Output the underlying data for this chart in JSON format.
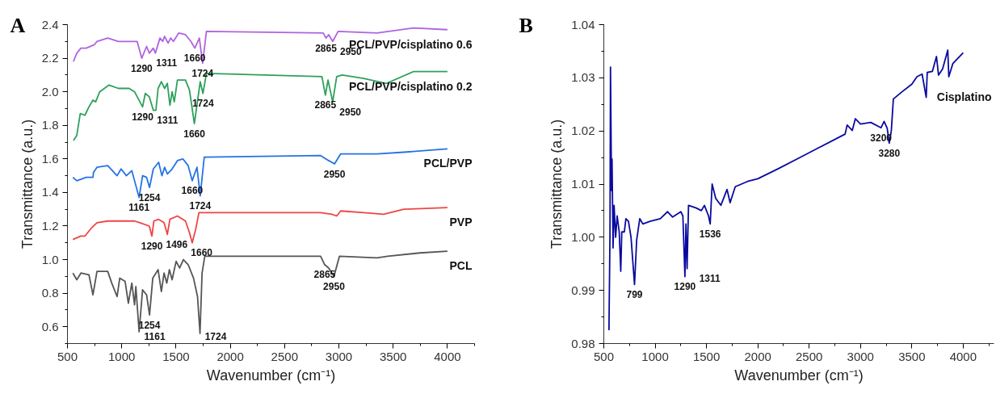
{
  "chart_data": [
    {
      "type": "line",
      "title": "A",
      "xlabel": "Wavenumber (cm⁻¹)",
      "ylabel": "Transmittance (a.u.)",
      "xlim": [
        500,
        4250
      ],
      "ylim": [
        0.5,
        2.4
      ],
      "xticks": [
        500,
        1000,
        1500,
        2000,
        2500,
        3000,
        3500,
        4000
      ],
      "yticks": [
        {
          "value": 0.6,
          "label": "0.6"
        },
        {
          "value": 0.8,
          "label": "0.8"
        },
        {
          "value": 1.0,
          "label": "1.0"
        },
        {
          "value": 1.2,
          "label": "1.2"
        },
        {
          "value": 1.4,
          "label": "1.4"
        },
        {
          "value": 1.6,
          "label": "1.6"
        },
        {
          "value": 1.8,
          "label": "1.8"
        },
        {
          "value": 2.0,
          "label": "2.0"
        },
        {
          "value": 2.2,
          "label": "2.2"
        },
        {
          "value": 2.4,
          "label": "2.4"
        }
      ],
      "series": [
        {
          "name": "PCL/PVP/cisplatino 0.6",
          "color": "#b063e0",
          "x": [
            555,
            586,
            624,
            673,
            747,
            772,
            871,
            969,
            1068,
            1142,
            1184,
            1229,
            1254,
            1291,
            1310,
            1352,
            1377,
            1395,
            1427,
            1451,
            1476,
            1525,
            1587,
            1637,
            1673,
            1715,
            1745,
            1780,
            2856,
            2881,
            2906,
            2943,
            2993,
            3351,
            3686,
            4000
          ],
          "values": [
            2.18,
            2.23,
            2.26,
            2.26,
            2.28,
            2.3,
            2.32,
            2.3,
            2.3,
            2.3,
            2.2,
            2.27,
            2.23,
            2.26,
            2.23,
            2.32,
            2.3,
            2.33,
            2.29,
            2.32,
            2.3,
            2.35,
            2.34,
            2.3,
            2.26,
            2.32,
            2.17,
            2.36,
            2.35,
            2.32,
            2.34,
            2.3,
            2.36,
            2.35,
            2.38,
            2.37
          ]
        },
        {
          "name": "PCL/PVP/cisplatino 0.2",
          "color": "#2ea05c",
          "x": [
            555,
            586,
            618,
            661,
            698,
            735,
            760,
            797,
            883,
            969,
            1068,
            1118,
            1192,
            1217,
            1254,
            1291,
            1315,
            1335,
            1365,
            1395,
            1420,
            1444,
            1464,
            1484,
            1513,
            1587,
            1624,
            1669,
            1723,
            1748,
            1780,
            2844,
            2876,
            2900,
            2943,
            2980,
            3030,
            3228,
            3438,
            3686,
            4000
          ],
          "values": [
            1.71,
            1.74,
            1.87,
            1.86,
            1.91,
            1.95,
            1.94,
            2.0,
            2.04,
            2.02,
            2.02,
            2.0,
            1.91,
            1.99,
            1.97,
            1.89,
            1.89,
            2.02,
            2.06,
            2.02,
            2.05,
            1.92,
            2.0,
            1.94,
            2.07,
            2.07,
            2.01,
            1.81,
            2.06,
            1.99,
            2.11,
            2.09,
            1.98,
            2.07,
            1.94,
            2.09,
            2.1,
            2.08,
            2.05,
            2.12,
            2.12
          ]
        },
        {
          "name": "PCL/PVP",
          "color": "#2472e6",
          "x": [
            550,
            586,
            673,
            735,
            740,
            772,
            871,
            957,
            994,
            1043,
            1093,
            1160,
            1192,
            1229,
            1256,
            1291,
            1340,
            1370,
            1395,
            1420,
            1464,
            1513,
            1563,
            1612,
            1649,
            1693,
            1723,
            1760,
            2832,
            2906,
            2960,
            3017,
            3351,
            3599,
            4000
          ],
          "values": [
            1.49,
            1.47,
            1.49,
            1.49,
            1.52,
            1.55,
            1.56,
            1.5,
            1.54,
            1.5,
            1.53,
            1.37,
            1.5,
            1.49,
            1.43,
            1.54,
            1.58,
            1.5,
            1.55,
            1.51,
            1.54,
            1.59,
            1.6,
            1.56,
            1.47,
            1.55,
            1.38,
            1.61,
            1.62,
            1.59,
            1.57,
            1.63,
            1.63,
            1.64,
            1.66
          ]
        },
        {
          "name": "PVP",
          "color": "#f04444",
          "x": [
            550,
            624,
            661,
            723,
            772,
            871,
            1118,
            1167,
            1254,
            1278,
            1296,
            1340,
            1390,
            1420,
            1444,
            1513,
            1587,
            1624,
            1649,
            1681,
            1711,
            2832,
            2935,
            2980,
            3017,
            3228,
            3413,
            3599,
            4000
          ],
          "values": [
            1.12,
            1.14,
            1.14,
            1.19,
            1.22,
            1.23,
            1.23,
            1.22,
            1.2,
            1.14,
            1.23,
            1.24,
            1.22,
            1.15,
            1.24,
            1.26,
            1.23,
            1.16,
            1.1,
            1.18,
            1.28,
            1.28,
            1.27,
            1.26,
            1.29,
            1.28,
            1.27,
            1.3,
            1.31
          ]
        },
        {
          "name": "PCL",
          "color": "#555555",
          "x": [
            550,
            586,
            624,
            698,
            735,
            772,
            871,
            908,
            957,
            982,
            1031,
            1061,
            1093,
            1118,
            1130,
            1160,
            1192,
            1229,
            1256,
            1286,
            1335,
            1365,
            1390,
            1415,
            1439,
            1464,
            1501,
            1533,
            1568,
            1612,
            1661,
            1698,
            1721,
            1740,
            1765,
            2832,
            2869,
            2906,
            2955,
            3005,
            3351,
            3450,
            3747,
            4000
          ],
          "values": [
            0.92,
            0.88,
            0.92,
            0.91,
            0.79,
            0.93,
            0.93,
            0.86,
            0.78,
            0.89,
            0.87,
            0.74,
            0.86,
            0.73,
            0.84,
            0.57,
            0.82,
            0.79,
            0.67,
            0.89,
            0.94,
            0.81,
            0.92,
            0.86,
            0.94,
            0.88,
            0.99,
            0.95,
            1.0,
            0.97,
            0.89,
            0.78,
            0.56,
            0.92,
            1.02,
            1.02,
            0.97,
            0.95,
            0.9,
            1.02,
            1.01,
            1.02,
            1.04,
            1.05
          ]
        }
      ],
      "annotations": [
        {
          "text": "1290",
          "x": 1184,
          "y": 2.2
        },
        {
          "text": "1311",
          "x": 1310,
          "y": 2.23
        },
        {
          "text": "1660",
          "x": 1673,
          "y": 2.26
        },
        {
          "text": "1724",
          "x": 1745,
          "y": 2.17
        },
        {
          "text": "2865",
          "x": 2881,
          "y": 2.32
        },
        {
          "text": "2950",
          "x": 2943,
          "y": 2.3
        },
        {
          "text": "1290",
          "x": 1192,
          "y": 1.91
        },
        {
          "text": "1311",
          "x": 1315,
          "y": 1.89
        },
        {
          "text": "1660",
          "x": 1669,
          "y": 1.81
        },
        {
          "text": "1724",
          "x": 1748,
          "y": 1.99
        },
        {
          "text": "2865",
          "x": 2876,
          "y": 1.98
        },
        {
          "text": "2950",
          "x": 2943,
          "y": 1.94
        },
        {
          "text": "1161",
          "x": 1160,
          "y": 1.37
        },
        {
          "text": "1254",
          "x": 1256,
          "y": 1.43
        },
        {
          "text": "1660",
          "x": 1649,
          "y": 1.47
        },
        {
          "text": "1724",
          "x": 1723,
          "y": 1.38
        },
        {
          "text": "2950",
          "x": 2960,
          "y": 1.57
        },
        {
          "text": "1290",
          "x": 1278,
          "y": 1.14
        },
        {
          "text": "1496",
          "x": 1420,
          "y": 1.15
        },
        {
          "text": "1660",
          "x": 1649,
          "y": 1.1
        },
        {
          "text": "1161",
          "x": 1160,
          "y": 0.57
        },
        {
          "text": "1254",
          "x": 1256,
          "y": 0.67
        },
        {
          "text": "1724",
          "x": 1721,
          "y": 0.56
        },
        {
          "text": "2865",
          "x": 2869,
          "y": 0.97
        },
        {
          "text": "2950",
          "x": 2955,
          "y": 0.9
        }
      ]
    },
    {
      "type": "line",
      "title": "B",
      "xlabel": "Wavenumber (cm⁻¹)",
      "ylabel": "Transmittance (a.u.)",
      "xlim": [
        500,
        4300
      ],
      "ylim": [
        0.98,
        1.04
      ],
      "xticks": [
        500,
        1000,
        1500,
        2000,
        2500,
        3000,
        3500,
        4000
      ],
      "yticks": [
        {
          "value": 0.98,
          "label": "0.98"
        },
        {
          "value": 0.99,
          "label": "0.99"
        },
        {
          "value": 1.0,
          "label": "1.00"
        },
        {
          "value": 1.01,
          "label": "1.01"
        },
        {
          "value": 1.02,
          "label": "1.02"
        },
        {
          "value": 1.03,
          "label": "1.03"
        },
        {
          "value": 1.04,
          "label": "1.04"
        }
      ],
      "series": [
        {
          "name": "Cisplatino",
          "color": "#0a0aa0",
          "x": [
            550,
            560,
            565,
            575,
            580,
            590,
            600,
            615,
            630,
            650,
            665,
            675,
            700,
            715,
            740,
            765,
            799,
            820,
            850,
            880,
            950,
            1050,
            1120,
            1170,
            1250,
            1270,
            1290,
            1300,
            1311,
            1325,
            1400,
            1450,
            1480,
            1520,
            1536,
            1555,
            1590,
            1640,
            1700,
            1730,
            1780,
            1900,
            2000,
            2200,
            2400,
            2600,
            2800,
            2850,
            2870,
            2920,
            2950,
            3000,
            3100,
            3200,
            3230,
            3260,
            3280,
            3300,
            3320,
            3400,
            3500,
            3550,
            3600,
            3640,
            3650,
            3700,
            3740,
            3760,
            3800,
            3850,
            3860,
            3900,
            4000
          ],
          "values": [
            0.9825,
            1.0004,
            1.032,
            1.0088,
            1.0147,
            0.998,
            1.006,
            1.0,
            1.004,
            1.001,
            0.9936,
            1.001,
            1.001,
            1.0035,
            1.003,
            1.0,
            0.9911,
            0.9995,
            1.0035,
            1.0025,
            1.003,
            1.0035,
            1.0048,
            1.0038,
            1.0048,
            1.004,
            0.9926,
            1.0025,
            0.9941,
            1.006,
            1.0055,
            1.005,
            1.006,
            1.004,
            1.0025,
            1.01,
            1.0073,
            1.006,
            1.009,
            1.0065,
            1.0095,
            1.0105,
            1.011,
            1.0129,
            1.0149,
            1.0169,
            1.0189,
            1.0194,
            1.0211,
            1.0201,
            1.0223,
            1.0213,
            1.0216,
            1.0206,
            1.0218,
            1.0205,
            1.0177,
            1.02,
            1.026,
            1.0273,
            1.0288,
            1.0302,
            1.0307,
            1.0263,
            1.031,
            1.0312,
            1.034,
            1.0305,
            1.0317,
            1.0352,
            1.0302,
            1.0327,
            1.0347
          ]
        }
      ],
      "annotations": [
        {
          "text": "799",
          "x": 799,
          "y": 0.9911
        },
        {
          "text": "1290",
          "x": 1290,
          "y": 0.9926
        },
        {
          "text": "1311",
          "x": 1311,
          "y": 0.9941
        },
        {
          "text": "1536",
          "x": 1536,
          "y": 1.0025
        },
        {
          "text": "3200",
          "x": 3200,
          "y": 1.0206
        },
        {
          "text": "3280",
          "x": 3280,
          "y": 1.0177
        }
      ]
    }
  ]
}
